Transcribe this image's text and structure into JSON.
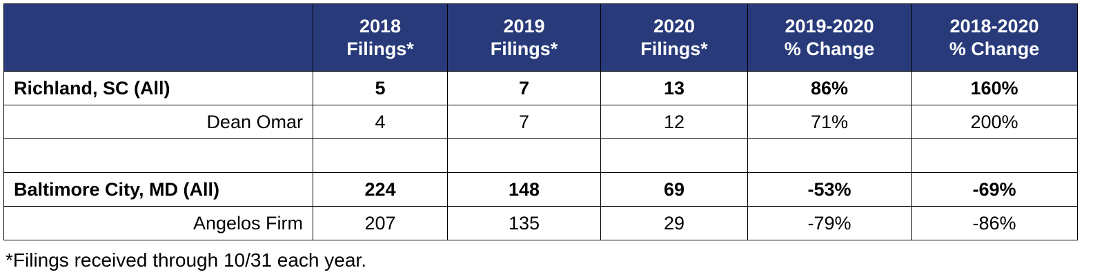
{
  "table": {
    "header": [
      [
        "2018",
        "Filings*"
      ],
      [
        "2019",
        "Filings*"
      ],
      [
        "2020",
        "Filings*"
      ],
      [
        "2019-2020",
        "% Change"
      ],
      [
        "2018-2020",
        "% Change"
      ]
    ],
    "rows": [
      {
        "bold": true,
        "cells": [
          "Richland, SC (All)",
          "5",
          "7",
          "13",
          "86%",
          "160%"
        ]
      },
      {
        "bold": false,
        "cells": [
          "Dean Omar",
          "4",
          "7",
          "12",
          "71%",
          "200%"
        ]
      },
      {
        "bold": true,
        "cells": [
          "Baltimore City, MD (All)",
          "224",
          "148",
          "69",
          "-53%",
          "-69%"
        ]
      },
      {
        "bold": false,
        "cells": [
          "Angelos Firm",
          "207",
          "135",
          "29",
          "-79%",
          "-86%"
        ]
      }
    ],
    "footnote": "*Filings received through 10/31 each year."
  }
}
